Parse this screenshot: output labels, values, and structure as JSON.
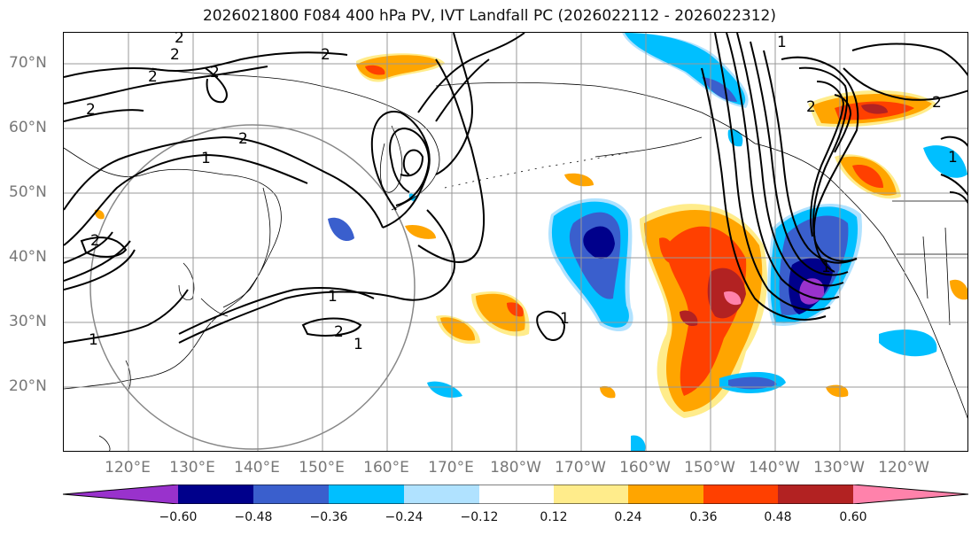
{
  "title": "2026021800 F084 400 hPa PV, IVT Landfall PC (2026022112 - 2026022312)",
  "lat_labels": [
    "70°N",
    "60°N",
    "50°N",
    "40°N",
    "30°N",
    "20°N"
  ],
  "lon_labels": [
    "120°E",
    "130°E",
    "140°E",
    "150°E",
    "160°E",
    "170°E",
    "180°W",
    "170°W",
    "160°W",
    "150°W",
    "140°W",
    "130°W",
    "120°W"
  ],
  "contour_labels": [
    "2",
    "2",
    "2",
    "2",
    "2",
    "2",
    "1",
    "2",
    "2",
    "1",
    "2",
    "1",
    "1",
    "1",
    "1",
    "2",
    "2",
    "1",
    "1"
  ],
  "colorbar": {
    "ticks": [
      "−0.60",
      "−0.48",
      "−0.36",
      "−0.24",
      "−0.12",
      "0.12",
      "0.24",
      "0.36",
      "0.48",
      "0.60"
    ],
    "colors": [
      "#9932cc",
      "#00008b",
      "#3a5fcd",
      "#00bfff",
      "#b0e2ff",
      "#ffffff",
      "#ffec8b",
      "#ffa500",
      "#ff4000",
      "#b22222",
      "#ff82ab"
    ]
  },
  "fill_colors": {
    "deep_blue": "#00008b",
    "royal_blue": "#3a5fcd",
    "sky_blue": "#00bfff",
    "light_blue": "#b0e2ff",
    "pale_yellow": "#ffec8b",
    "orange": "#ffa500",
    "red_orange": "#ff4000",
    "dark_red": "#b22222",
    "pink": "#ff82ab",
    "purple": "#9932cc"
  }
}
